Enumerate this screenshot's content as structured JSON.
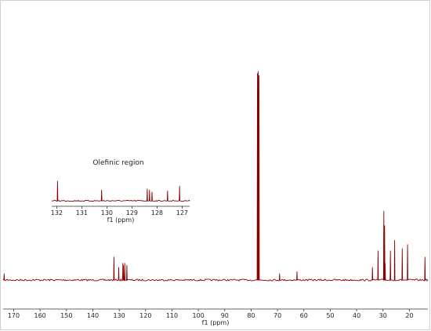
{
  "chart_data": [
    {
      "type": "line",
      "title": "",
      "xlabel": "f1 (ppm)",
      "ylabel": "",
      "xlim": [
        174,
        13
      ],
      "x_reversed": true,
      "grid": false,
      "ticks": [
        170,
        160,
        150,
        140,
        130,
        120,
        110,
        100,
        90,
        80,
        70,
        60,
        50,
        40,
        30,
        20
      ],
      "color": "#8b0000",
      "series": [
        {
          "peaks_ppm": [
            173.6,
            132.0,
            130.2,
            128.6,
            128.4,
            127.9,
            127.1,
            77.6,
            77.3,
            77.0,
            69.2,
            62.6,
            34.0,
            31.9,
            29.7,
            29.4,
            29.2,
            27.2,
            25.6,
            22.7,
            20.7,
            14.1
          ],
          "relative_heights": [
            0.03,
            0.11,
            0.06,
            0.08,
            0.07,
            0.08,
            0.07,
            0.99,
            1.0,
            0.98,
            0.03,
            0.04,
            0.06,
            0.14,
            0.33,
            0.26,
            0.08,
            0.14,
            0.19,
            0.15,
            0.17,
            0.11
          ]
        }
      ]
    },
    {
      "type": "line",
      "title": "Olefinic region",
      "xlabel": "f1 (ppm)",
      "ylabel": "",
      "xlim": [
        132.2,
        126.7
      ],
      "x_reversed": true,
      "grid": false,
      "ticks": [
        132,
        131,
        130,
        129,
        128,
        127
      ],
      "color": "#8b0000",
      "series": [
        {
          "peaks_ppm": [
            131.97,
            130.21,
            128.39,
            128.3,
            128.2,
            127.58,
            127.1
          ],
          "relative_heights": [
            1.0,
            0.55,
            0.6,
            0.55,
            0.45,
            0.5,
            0.75
          ]
        }
      ]
    }
  ]
}
